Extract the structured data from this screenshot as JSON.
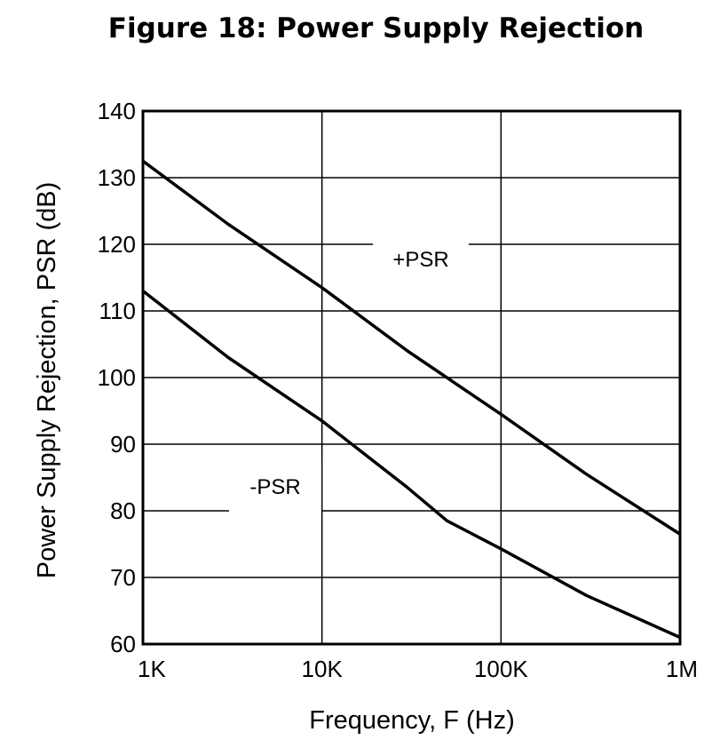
{
  "chart_data": {
    "type": "line",
    "title": "Figure 18: Power Supply Rejection",
    "xlabel": "Frequency, F (Hz)",
    "ylabel": "Power Supply Rejection, PSR (dB)",
    "x_scale": "log",
    "xlim": [
      1000,
      1000000
    ],
    "ylim": [
      60,
      140
    ],
    "x_ticks": [
      {
        "value": 1000,
        "label": "1K"
      },
      {
        "value": 10000,
        "label": "10K"
      },
      {
        "value": 100000,
        "label": "100K"
      },
      {
        "value": 1000000,
        "label": "1M"
      }
    ],
    "y_ticks": [
      {
        "value": 140,
        "label": "140"
      },
      {
        "value": 130,
        "label": "130"
      },
      {
        "value": 120,
        "label": "120"
      },
      {
        "value": 110,
        "label": "110"
      },
      {
        "value": 100,
        "label": "100"
      },
      {
        "value": 90,
        "label": "90"
      },
      {
        "value": 80,
        "label": "80"
      },
      {
        "value": 70,
        "label": "70"
      },
      {
        "value": 60,
        "label": "60"
      }
    ],
    "grid": true,
    "series": [
      {
        "name": "+PSR",
        "color": "#000000",
        "x": [
          1000,
          3000,
          10000,
          30000,
          100000,
          300000,
          1000000
        ],
        "y": [
          132.5,
          123,
          113.5,
          104,
          94.5,
          85.5,
          76.5
        ]
      },
      {
        "name": "-PSR",
        "color": "#000000",
        "x": [
          1000,
          3000,
          10000,
          30000,
          50000,
          100000,
          300000,
          1000000
        ],
        "y": [
          113,
          103,
          93.5,
          83.5,
          78.5,
          74.3,
          67.3,
          61
        ]
      }
    ]
  }
}
